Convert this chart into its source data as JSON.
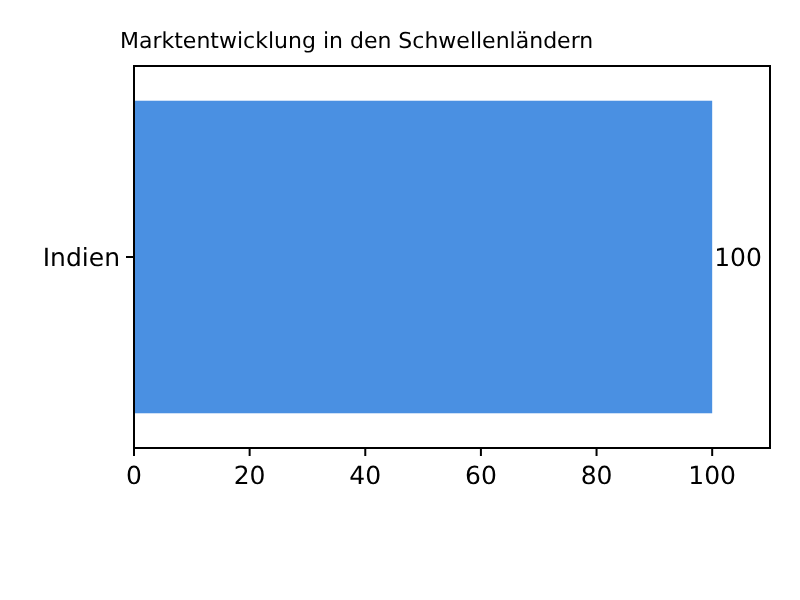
{
  "chart_data": {
    "type": "bar",
    "orientation": "horizontal",
    "title": "Marktentwicklung in den Schwellenländern",
    "categories": [
      "Indien"
    ],
    "values": [
      100
    ],
    "color": "#4a90e2",
    "xlim": [
      0,
      110
    ],
    "xticks": [
      0,
      20,
      40,
      60,
      80,
      100
    ],
    "data_labels": true,
    "grid": false
  }
}
